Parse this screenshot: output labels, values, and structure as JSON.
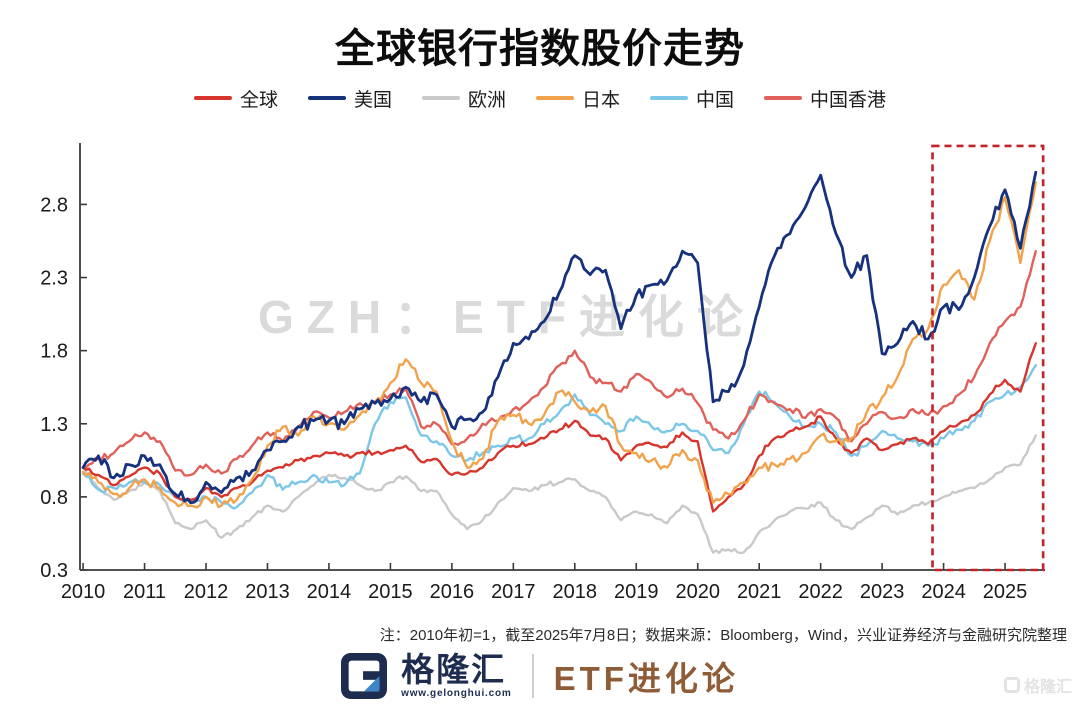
{
  "title": "全球银行指数股价走势",
  "watermark": "GZH：ETF进化论",
  "note": "注：2010年初=1，截至2025年7月8日；数据来源：Bloomberg，Wind，兴业证券经济与金融研究院整理",
  "footer": {
    "brand": "格隆汇",
    "brand_url": "www.gelonghui.com",
    "program": "ETF进化论",
    "corner_watermark": "格隆汇"
  },
  "chart_data": {
    "type": "line",
    "title": "全球银行指数股价走势",
    "xlabel": "",
    "ylabel": "",
    "x_start": 2010,
    "x_step": 0.25,
    "xlim": [
      2009.95,
      2025.65
    ],
    "ylim": [
      0.3,
      3.22
    ],
    "xticks": [
      2010,
      2011,
      2012,
      2013,
      2014,
      2015,
      2016,
      2017,
      2018,
      2019,
      2020,
      2021,
      2022,
      2023,
      2024,
      2025
    ],
    "yticks": [
      0.3,
      0.8,
      1.3,
      1.8,
      2.3,
      2.8
    ],
    "grid": false,
    "legend_position": "top",
    "base_note": "2010年初=1",
    "highlight_box": {
      "x_from": 2023.82,
      "x_to": 2025.62,
      "y_from": 0.3,
      "y_to": 3.2,
      "color": "#c22128",
      "style": "dashed"
    },
    "series": [
      {
        "name": "全球",
        "color": "#d7352b",
        "values": [
          1.0,
          0.95,
          0.88,
          0.94,
          1.0,
          0.96,
          0.8,
          0.78,
          0.86,
          0.8,
          0.86,
          0.9,
          0.98,
          1.0,
          1.05,
          1.08,
          1.1,
          1.08,
          1.1,
          1.1,
          1.12,
          1.15,
          1.04,
          1.06,
          0.95,
          0.96,
          1.0,
          1.1,
          1.15,
          1.16,
          1.2,
          1.26,
          1.32,
          1.22,
          1.2,
          1.05,
          1.15,
          1.16,
          1.14,
          1.24,
          1.18,
          0.7,
          0.8,
          0.88,
          1.08,
          1.2,
          1.25,
          1.28,
          1.35,
          1.2,
          1.1,
          1.2,
          1.12,
          1.16,
          1.2,
          1.16,
          1.25,
          1.3,
          1.36,
          1.5,
          1.6,
          1.52,
          1.85
        ]
      },
      {
        "name": "美国",
        "color": "#16317d",
        "values": [
          1.0,
          1.08,
          0.93,
          1.02,
          1.08,
          1.02,
          0.82,
          0.76,
          0.9,
          0.83,
          0.93,
          0.98,
          1.12,
          1.18,
          1.28,
          1.32,
          1.32,
          1.3,
          1.4,
          1.44,
          1.47,
          1.55,
          1.45,
          1.5,
          1.28,
          1.33,
          1.38,
          1.62,
          1.85,
          1.88,
          2.0,
          2.2,
          2.45,
          2.32,
          2.35,
          1.95,
          2.18,
          2.25,
          2.28,
          2.48,
          2.4,
          1.45,
          1.52,
          1.7,
          2.1,
          2.45,
          2.6,
          2.78,
          3.0,
          2.6,
          2.3,
          2.45,
          1.78,
          1.85,
          2.0,
          1.88,
          2.1,
          2.08,
          2.3,
          2.65,
          2.9,
          2.5,
          3.02
        ]
      },
      {
        "name": "欧洲",
        "color": "#c9c9c9",
        "values": [
          1.0,
          0.86,
          0.78,
          0.84,
          0.9,
          0.84,
          0.62,
          0.58,
          0.64,
          0.52,
          0.58,
          0.66,
          0.74,
          0.7,
          0.8,
          0.88,
          0.95,
          0.93,
          0.88,
          0.84,
          0.9,
          0.94,
          0.84,
          0.84,
          0.68,
          0.58,
          0.64,
          0.76,
          0.86,
          0.84,
          0.88,
          0.9,
          0.92,
          0.84,
          0.8,
          0.64,
          0.7,
          0.68,
          0.62,
          0.74,
          0.68,
          0.42,
          0.44,
          0.42,
          0.56,
          0.64,
          0.7,
          0.72,
          0.76,
          0.64,
          0.58,
          0.66,
          0.74,
          0.68,
          0.74,
          0.76,
          0.8,
          0.84,
          0.86,
          0.92,
          1.0,
          1.02,
          1.22
        ]
      },
      {
        "name": "日本",
        "color": "#f2a24b",
        "values": [
          0.97,
          0.9,
          0.82,
          0.86,
          0.92,
          0.86,
          0.76,
          0.74,
          0.8,
          0.74,
          0.78,
          0.92,
          1.15,
          1.28,
          1.22,
          1.35,
          1.3,
          1.26,
          1.36,
          1.45,
          1.58,
          1.74,
          1.58,
          1.52,
          1.18,
          1.0,
          1.06,
          1.32,
          1.36,
          1.3,
          1.36,
          1.52,
          1.45,
          1.38,
          1.42,
          1.15,
          1.1,
          1.05,
          1.0,
          1.12,
          1.05,
          0.76,
          0.82,
          0.9,
          1.0,
          1.02,
          1.06,
          1.1,
          1.22,
          1.18,
          1.2,
          1.38,
          1.48,
          1.62,
          1.88,
          1.95,
          2.25,
          2.35,
          2.15,
          2.55,
          2.85,
          2.4,
          2.95
        ]
      },
      {
        "name": "中国",
        "color": "#7cc6e8",
        "values": [
          0.96,
          0.85,
          0.86,
          0.9,
          0.9,
          0.88,
          0.8,
          0.78,
          0.8,
          0.76,
          0.73,
          0.83,
          0.95,
          0.85,
          0.9,
          0.95,
          0.9,
          0.88,
          0.96,
          1.3,
          1.45,
          1.48,
          1.22,
          1.18,
          1.08,
          1.05,
          1.1,
          1.15,
          1.2,
          1.2,
          1.3,
          1.38,
          1.5,
          1.36,
          1.3,
          1.25,
          1.35,
          1.28,
          1.25,
          1.3,
          1.25,
          1.12,
          1.1,
          1.3,
          1.52,
          1.45,
          1.35,
          1.28,
          1.3,
          1.24,
          1.08,
          1.15,
          1.25,
          1.2,
          1.18,
          1.15,
          1.2,
          1.26,
          1.32,
          1.45,
          1.5,
          1.55,
          1.7
        ]
      },
      {
        "name": "中国香港",
        "color": "#e0605a",
        "values": [
          1.0,
          1.06,
          1.1,
          1.18,
          1.24,
          1.18,
          0.98,
          0.95,
          1.02,
          0.96,
          1.06,
          1.15,
          1.24,
          1.18,
          1.28,
          1.38,
          1.34,
          1.38,
          1.44,
          1.44,
          1.5,
          1.54,
          1.28,
          1.3,
          1.16,
          1.2,
          1.3,
          1.32,
          1.4,
          1.45,
          1.55,
          1.7,
          1.8,
          1.62,
          1.58,
          1.52,
          1.64,
          1.58,
          1.48,
          1.54,
          1.44,
          1.26,
          1.2,
          1.32,
          1.5,
          1.44,
          1.4,
          1.34,
          1.4,
          1.34,
          1.18,
          1.3,
          1.38,
          1.34,
          1.4,
          1.36,
          1.42,
          1.5,
          1.62,
          1.85,
          2.0,
          2.1,
          2.48
        ]
      }
    ]
  }
}
